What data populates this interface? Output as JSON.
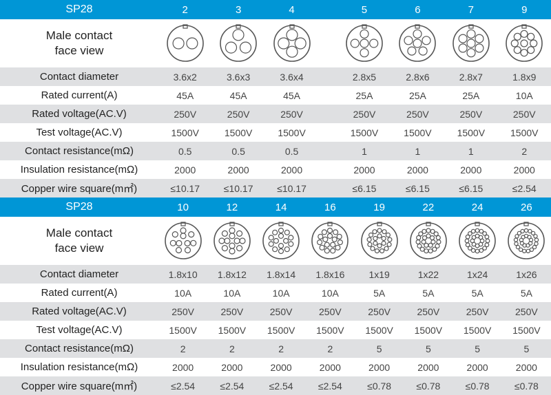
{
  "colors": {
    "header_bg": "#0096d6",
    "header_text": "#ffffff",
    "alt_row_bg": "#dfe0e2",
    "text": "#333333",
    "diagram_stroke": "#555555"
  },
  "labels": {
    "product": "SP28",
    "face_view_line1": "Male contact",
    "face_view_line2": "face view",
    "contact_diameter": "Contact diameter",
    "rated_current": "Rated current(A)",
    "rated_voltage": "Rated voltage(AC.V)",
    "test_voltage": "Test voltage(AC.V)",
    "contact_resistance": "Contact resistance(mΩ)",
    "insulation_resistance": "Insulation resistance(mΩ)",
    "copper_wire": "Copper wire square(m㎡)"
  },
  "sections": [
    {
      "has_gap": true,
      "gap_after_index": 2,
      "pins": [
        "2",
        "3",
        "4",
        "5",
        "6",
        "7",
        "9"
      ],
      "pin_counts": [
        2,
        3,
        4,
        5,
        6,
        7,
        9
      ],
      "pin_radius": [
        8,
        8,
        8,
        6,
        6,
        6,
        5
      ],
      "rows": [
        {
          "key": "contact_diameter",
          "alt": true,
          "cells": [
            "3.6x2",
            "3.6x3",
            "3.6x4",
            "2.8x5",
            "2.8x6",
            "2.8x7",
            "1.8x9"
          ]
        },
        {
          "key": "rated_current",
          "alt": false,
          "cells": [
            "45A",
            "45A",
            "45A",
            "25A",
            "25A",
            "25A",
            "10A"
          ]
        },
        {
          "key": "rated_voltage",
          "alt": true,
          "cells": [
            "250V",
            "250V",
            "250V",
            "250V",
            "250V",
            "250V",
            "250V"
          ]
        },
        {
          "key": "test_voltage",
          "alt": false,
          "cells": [
            "1500V",
            "1500V",
            "1500V",
            "1500V",
            "1500V",
            "1500V",
            "1500V"
          ]
        },
        {
          "key": "contact_resistance",
          "alt": true,
          "cells": [
            "0.5",
            "0.5",
            "0.5",
            "1",
            "1",
            "1",
            "2"
          ]
        },
        {
          "key": "insulation_resistance",
          "alt": false,
          "cells": [
            "2000",
            "2000",
            "2000",
            "2000",
            "2000",
            "2000",
            "2000"
          ]
        },
        {
          "key": "copper_wire",
          "alt": true,
          "cells": [
            "≤10.17",
            "≤10.17",
            "≤10.17",
            "≤6.15",
            "≤6.15",
            "≤6.15",
            "≤2.54"
          ]
        }
      ]
    },
    {
      "has_gap": false,
      "pins": [
        "10",
        "12",
        "14",
        "16",
        "19",
        "22",
        "24",
        "26"
      ],
      "pin_counts": [
        10,
        12,
        14,
        16,
        19,
        22,
        24,
        26
      ],
      "pin_radius": [
        4,
        4,
        3.5,
        3.5,
        3,
        3,
        2.8,
        2.6
      ],
      "rows": [
        {
          "key": "contact_diameter",
          "alt": true,
          "cells": [
            "1.8x10",
            "1.8x12",
            "1.8x14",
            "1.8x16",
            "1x19",
            "1x22",
            "1x24",
            "1x26"
          ]
        },
        {
          "key": "rated_current",
          "alt": false,
          "cells": [
            "10A",
            "10A",
            "10A",
            "10A",
            "5A",
            "5A",
            "5A",
            "5A"
          ]
        },
        {
          "key": "rated_voltage",
          "alt": true,
          "cells": [
            "250V",
            "250V",
            "250V",
            "250V",
            "250V",
            "250V",
            "250V",
            "250V"
          ]
        },
        {
          "key": "test_voltage",
          "alt": false,
          "cells": [
            "1500V",
            "1500V",
            "1500V",
            "1500V",
            "1500V",
            "1500V",
            "1500V",
            "1500V"
          ]
        },
        {
          "key": "contact_resistance",
          "alt": true,
          "cells": [
            "2",
            "2",
            "2",
            "2",
            "5",
            "5",
            "5",
            "5"
          ]
        },
        {
          "key": "insulation_resistance",
          "alt": false,
          "cells": [
            "2000",
            "2000",
            "2000",
            "2000",
            "2000",
            "2000",
            "2000",
            "2000"
          ]
        },
        {
          "key": "copper_wire",
          "alt": true,
          "cells": [
            "≤2.54",
            "≤2.54",
            "≤2.54",
            "≤2.54",
            "≤0.78",
            "≤0.78",
            "≤0.78",
            "≤0.78"
          ]
        }
      ]
    }
  ]
}
